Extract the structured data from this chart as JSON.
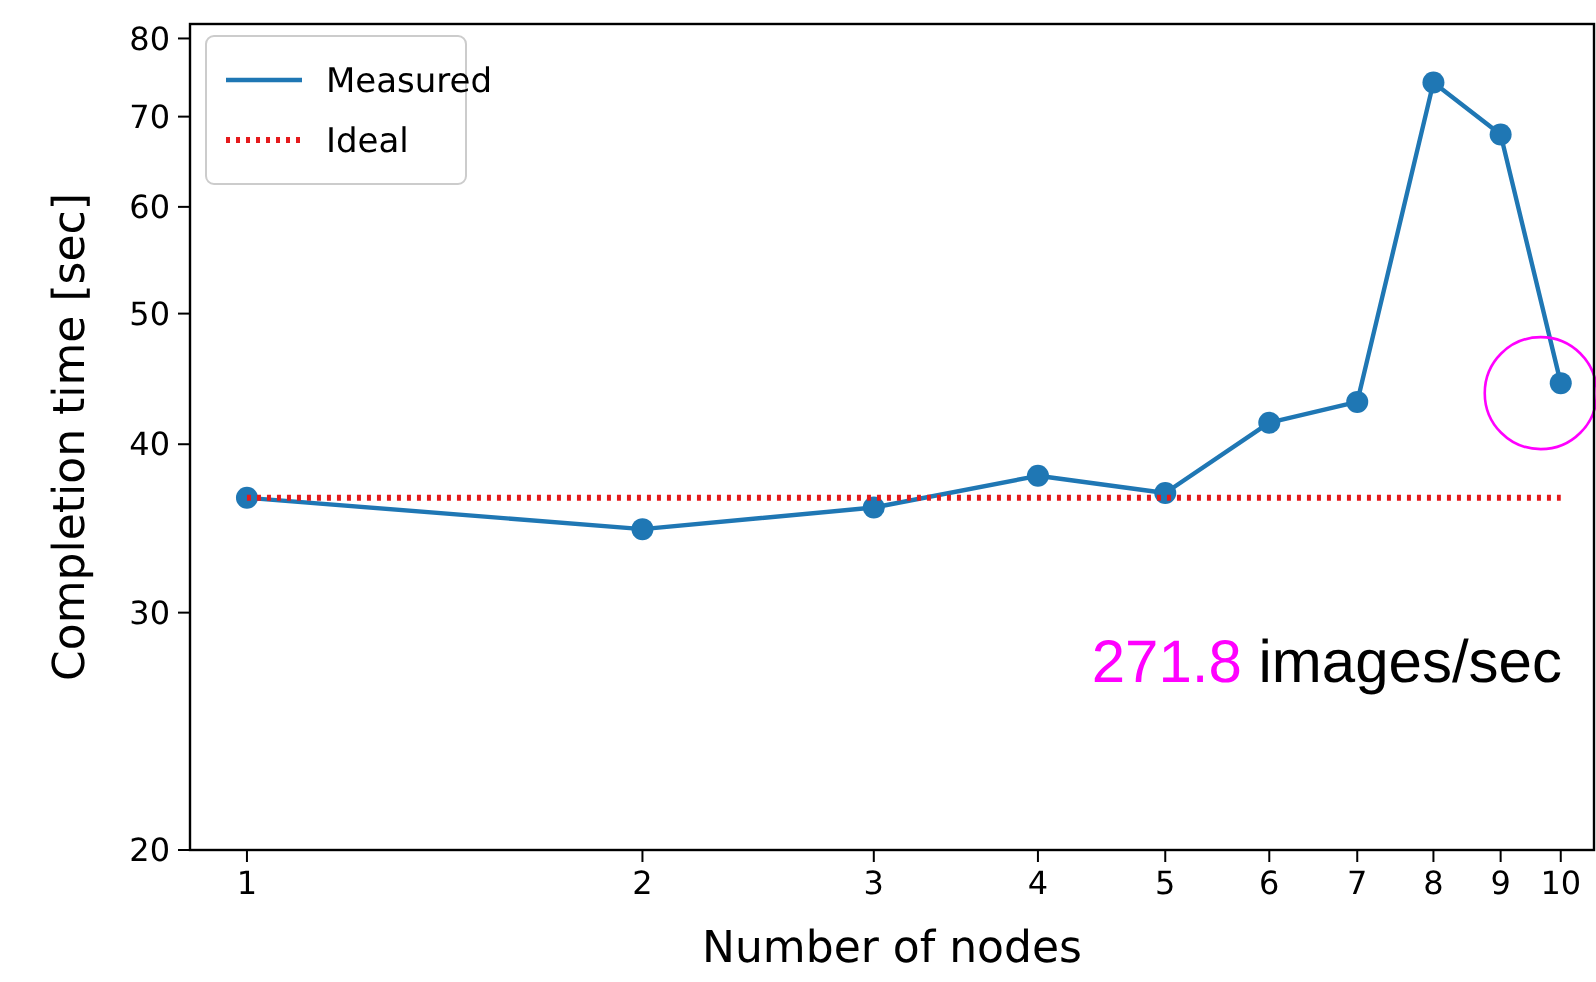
{
  "chart_data": {
    "type": "line",
    "xlabel": "Number of nodes",
    "ylabel": "Completion time [sec]",
    "log": "xy",
    "xlim": [
      0.905,
      10.6
    ],
    "ylim": [
      20,
      82
    ],
    "xticks": [
      1,
      2,
      3,
      4,
      5,
      6,
      7,
      8,
      9,
      10
    ],
    "yticks": [
      20,
      30,
      40,
      50,
      60,
      70,
      80
    ],
    "legend": "top left",
    "grid": false,
    "series": [
      {
        "name": "Measured",
        "color": "#1f77b4",
        "marker": "circle",
        "line_style": "solid",
        "x": [
          1,
          2,
          3,
          4,
          5,
          6,
          7,
          8,
          9,
          10
        ],
        "values": [
          36.5,
          34.6,
          35.9,
          37.9,
          36.8,
          41.5,
          43.0,
          74.2,
          67.9,
          44.4
        ]
      },
      {
        "name": "Ideal",
        "color": "#e41a1c",
        "marker": "none",
        "line_style": "dotted",
        "x": [
          1,
          10
        ],
        "values": [
          36.5,
          36.5
        ]
      }
    ],
    "annotations": [
      "271.8 images/sec"
    ]
  }
}
